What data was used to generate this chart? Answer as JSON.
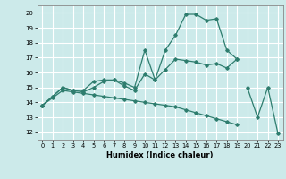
{
  "xlabel": "Humidex (Indice chaleur)",
  "bg_color": "#cceaea",
  "grid_color": "#ffffff",
  "line_color": "#2e7d6e",
  "xlim": [
    -0.5,
    23.5
  ],
  "ylim": [
    11.5,
    20.5
  ],
  "xticks": [
    0,
    1,
    2,
    3,
    4,
    5,
    6,
    7,
    8,
    9,
    10,
    11,
    12,
    13,
    14,
    15,
    16,
    17,
    18,
    19,
    20,
    21,
    22,
    23
  ],
  "yticks": [
    12,
    13,
    14,
    15,
    16,
    17,
    18,
    19,
    20
  ],
  "series": [
    [
      13.8,
      14.4,
      15.0,
      14.8,
      14.8,
      15.4,
      15.5,
      15.5,
      15.3,
      15.0,
      17.5,
      15.5,
      17.5,
      18.5,
      19.9,
      19.9,
      19.5,
      19.6,
      17.5,
      16.9,
      null,
      null,
      null,
      null
    ],
    [
      13.8,
      14.4,
      15.0,
      14.8,
      14.7,
      15.0,
      15.4,
      15.5,
      15.1,
      14.8,
      15.9,
      15.5,
      16.2,
      16.9,
      16.8,
      16.7,
      16.5,
      16.6,
      16.3,
      16.9,
      null,
      null,
      null,
      null
    ],
    [
      13.8,
      14.3,
      14.8,
      14.7,
      14.6,
      14.5,
      14.4,
      14.3,
      14.2,
      14.1,
      14.0,
      13.9,
      13.8,
      13.7,
      13.5,
      13.3,
      13.1,
      12.9,
      12.7,
      12.5,
      null,
      null,
      null,
      null
    ],
    [
      null,
      null,
      null,
      null,
      null,
      null,
      null,
      null,
      null,
      null,
      null,
      null,
      null,
      null,
      null,
      null,
      null,
      null,
      null,
      null,
      15.0,
      13.0,
      15.0,
      11.9
    ]
  ]
}
